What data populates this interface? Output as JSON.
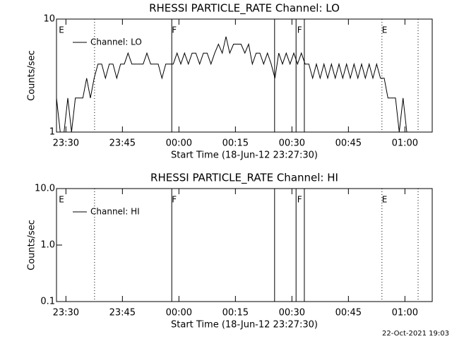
{
  "chart_data": [
    {
      "type": "line",
      "title": "RHESSI PARTICLE_RATE Channel: LO",
      "xlabel": "Start Time (18-Jun-12 23:27:30)",
      "ylabel": "Counts/sec",
      "log_y": true,
      "xlim": [
        0,
        99.75
      ],
      "ylim": [
        1,
        10
      ],
      "xticks": [
        {
          "value": 2.5,
          "label": "23:30"
        },
        {
          "value": 17.5,
          "label": "23:45"
        },
        {
          "value": 32.5,
          "label": "00:00"
        },
        {
          "value": 47.5,
          "label": "00:15"
        },
        {
          "value": 62.5,
          "label": "00:30"
        },
        {
          "value": 77.5,
          "label": "00:45"
        },
        {
          "value": 92.5,
          "label": "01:00"
        }
      ],
      "yticks": [
        1,
        10
      ],
      "legend": "upper left",
      "markers": [
        {
          "x": 10.1,
          "style": "dotted"
        },
        {
          "x": 30.6,
          "style": "solid"
        },
        {
          "x": 57.9,
          "style": "solid"
        },
        {
          "x": 63.6,
          "style": "solid"
        },
        {
          "x": 65.8,
          "style": "solid"
        },
        {
          "x": 86.4,
          "style": "dotted"
        },
        {
          "x": 96,
          "style": "dotted"
        }
      ],
      "flags": [
        {
          "x": 0.6,
          "label": "E"
        },
        {
          "x": 30.6,
          "label": "F"
        },
        {
          "x": 63.9,
          "label": "F"
        },
        {
          "x": 86.4,
          "label": "E"
        }
      ],
      "series": [
        {
          "name": "Channel: LO",
          "color": "#000000",
          "x": [
            0,
            1,
            2,
            3,
            4,
            5,
            6,
            7,
            8,
            9,
            10,
            11,
            12,
            13,
            14,
            15,
            16,
            17,
            18,
            19,
            20,
            21,
            22,
            23,
            24,
            25,
            26,
            27,
            28,
            29,
            30,
            31,
            32,
            33,
            34,
            35,
            36,
            37,
            38,
            39,
            40,
            41,
            42,
            43,
            44,
            45,
            46,
            47,
            48,
            49,
            50,
            51,
            52,
            53,
            54,
            55,
            56,
            57,
            58,
            59,
            60,
            61,
            62,
            63,
            64,
            65,
            66,
            67,
            68,
            69,
            70,
            71,
            72,
            73,
            74,
            75,
            76,
            77,
            78,
            79,
            80,
            81,
            82,
            83,
            84,
            85,
            86,
            87,
            88,
            89,
            90,
            91,
            92,
            93
          ],
          "values": [
            2,
            1,
            1,
            2,
            1,
            2,
            2,
            2,
            3,
            2,
            3,
            4,
            4,
            3,
            4,
            4,
            3,
            4,
            4,
            5,
            4,
            4,
            4,
            4,
            5,
            4,
            4,
            4,
            3,
            4,
            4,
            4,
            5,
            4,
            5,
            4,
            5,
            5,
            4,
            5,
            5,
            4,
            5,
            6,
            5,
            7,
            5,
            6,
            6,
            6,
            5,
            6,
            4,
            5,
            5,
            4,
            5,
            4,
            3,
            5,
            4,
            5,
            4,
            5,
            4,
            5,
            4,
            4,
            3,
            4,
            3,
            4,
            3,
            4,
            3,
            4,
            3,
            4,
            3,
            4,
            3,
            4,
            3,
            4,
            3,
            4,
            3,
            3,
            2,
            2,
            2,
            1,
            2,
            1
          ]
        }
      ]
    },
    {
      "type": "line",
      "title": "RHESSI PARTICLE_RATE Channel: HI",
      "xlabel": "Start Time (18-Jun-12 23:27:30)",
      "ylabel": "Counts/sec",
      "log_y": true,
      "xlim": [
        0,
        99.75
      ],
      "ylim": [
        0.1,
        10
      ],
      "xticks": [
        {
          "value": 2.5,
          "label": "23:30"
        },
        {
          "value": 17.5,
          "label": "23:45"
        },
        {
          "value": 32.5,
          "label": "00:00"
        },
        {
          "value": 47.5,
          "label": "00:15"
        },
        {
          "value": 62.5,
          "label": "00:30"
        },
        {
          "value": 77.5,
          "label": "00:45"
        },
        {
          "value": 92.5,
          "label": "01:00"
        }
      ],
      "yticks": [
        {
          "value": 0.1,
          "label": "0.1"
        },
        {
          "value": 1,
          "label": "1.0"
        },
        {
          "value": 10,
          "label": "10.0"
        }
      ],
      "legend": "upper left",
      "markers": [
        {
          "x": 10.1,
          "style": "dotted"
        },
        {
          "x": 30.6,
          "style": "solid"
        },
        {
          "x": 57.9,
          "style": "solid"
        },
        {
          "x": 63.6,
          "style": "solid"
        },
        {
          "x": 65.8,
          "style": "solid"
        },
        {
          "x": 86.4,
          "style": "dotted"
        },
        {
          "x": 96,
          "style": "dotted"
        }
      ],
      "flags": [
        {
          "x": 0.6,
          "label": "E"
        },
        {
          "x": 30.6,
          "label": "F"
        },
        {
          "x": 63.9,
          "label": "F"
        },
        {
          "x": 86.4,
          "label": "E"
        }
      ],
      "series": [
        {
          "name": "Channel: HI",
          "color": "#000000",
          "x": [],
          "values": []
        }
      ]
    }
  ],
  "footer": "22-Oct-2021 19:03"
}
